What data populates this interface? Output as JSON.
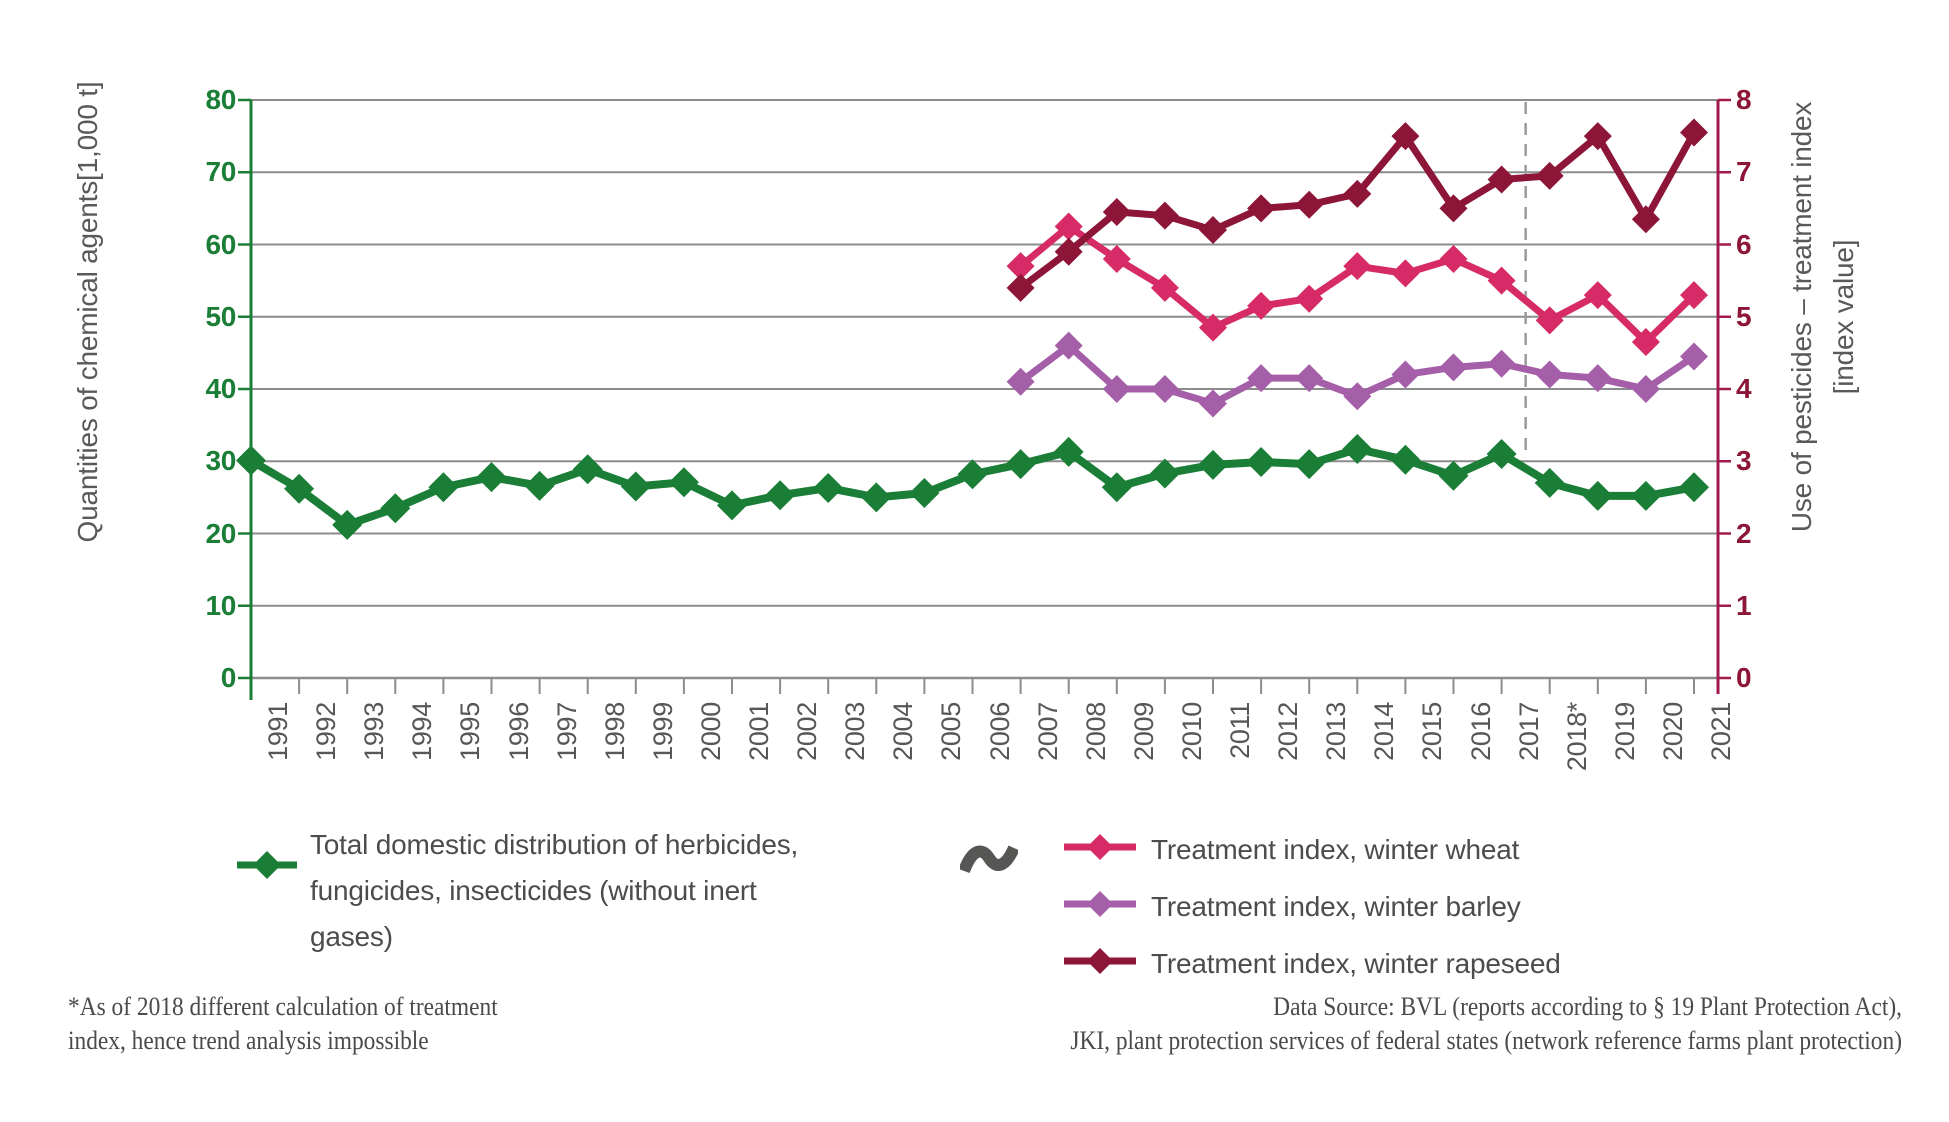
{
  "chart_data": {
    "type": "line",
    "x": [
      1991,
      1992,
      1993,
      1994,
      1995,
      1996,
      1997,
      1998,
      1999,
      2000,
      2001,
      2002,
      2003,
      2004,
      2005,
      2006,
      2007,
      2008,
      2009,
      2010,
      2011,
      2012,
      2013,
      2014,
      2015,
      2016,
      2017,
      2018,
      2019,
      2020,
      2021
    ],
    "x_labels": [
      "1991",
      "1992",
      "1993",
      "1994",
      "1995",
      "1996",
      "1997",
      "1998",
      "1999",
      "2000",
      "2001",
      "2002",
      "2003",
      "2004",
      "2005",
      "2006",
      "2007",
      "2008",
      "2009",
      "2010",
      "2011",
      "2012",
      "2013",
      "2014",
      "2015",
      "2016",
      "2017",
      "2018*",
      "2019",
      "2020",
      "2021"
    ],
    "left_axis": {
      "title": "Quantities of chemical agents[1,000 t]",
      "range": [
        0,
        80
      ],
      "ticks": [
        0,
        10,
        20,
        30,
        40,
        50,
        60,
        70,
        80
      ],
      "color": "#1b7e37"
    },
    "right_axis": {
      "title": "Use of pesticides – treatment index\n[index value]",
      "range": [
        0,
        8
      ],
      "ticks": [
        0,
        1,
        2,
        3,
        4,
        5,
        6,
        7,
        8
      ],
      "color": "#8c1538",
      "line_color": "#a21a4d"
    },
    "grid": {
      "on": true,
      "color": "#8c8c8c"
    },
    "dashed_divider": {
      "between_years": [
        2017,
        2018
      ],
      "color": "#9a9a9a"
    },
    "series": [
      {
        "name": "Total domestic distribution of herbicides, fungicides, insecticides (without inert gases)",
        "axis": "left",
        "color": "#1b7e37",
        "start_year": 1991,
        "values": [
          30.1,
          26.2,
          21.2,
          23.5,
          26.4,
          27.8,
          26.6,
          28.9,
          26.5,
          27.1,
          23.9,
          25.3,
          26.3,
          25.0,
          25.6,
          28.2,
          29.6,
          31.3,
          26.4,
          28.3,
          29.5,
          29.9,
          29.6,
          31.7,
          30.2,
          28.0,
          31.0,
          27.0,
          25.2,
          25.2,
          26.4
        ]
      },
      {
        "name": "Treatment index, winter wheat",
        "axis": "right",
        "color": "#d62b66",
        "start_year": 2007,
        "values": [
          5.7,
          6.25,
          5.8,
          5.4,
          4.85,
          5.15,
          5.25,
          5.7,
          5.6,
          5.8,
          5.5,
          4.95,
          5.3,
          4.65,
          5.3
        ]
      },
      {
        "name": "Treatment index, winter barley",
        "axis": "right",
        "color": "#a55fa9",
        "start_year": 2007,
        "values": [
          4.1,
          4.6,
          4.0,
          4.0,
          3.8,
          4.15,
          4.15,
          3.9,
          4.2,
          4.3,
          4.35,
          4.2,
          4.15,
          4.0,
          4.45
        ]
      },
      {
        "name": "Treatment index, winter rapeseed",
        "axis": "right",
        "color": "#8c1538",
        "start_year": 2007,
        "values": [
          5.4,
          5.9,
          6.45,
          6.4,
          6.2,
          6.5,
          6.55,
          6.7,
          7.5,
          6.5,
          6.9,
          6.95,
          7.5,
          6.35,
          7.55
        ]
      }
    ],
    "legend_position": "bottom"
  },
  "legend": {
    "left_label": "Total domestic distribution of herbicides,\nfungicides, insecticides (without inert\ngases)",
    "right_labels": [
      "Treatment index, winter wheat",
      "Treatment index, winter barley",
      "Treatment index, winter rapeseed"
    ],
    "break_symbol": "wave-tilde"
  },
  "footnotes": {
    "asterisk_note": "*As of 2018 different calculation of treatment\nindex, hence trend analysis impossible",
    "source": "Data Source: BVL (reports according to § 19 Plant Protection Act),\nJKI, plant protection services of federal states (network reference farms plant protection)"
  }
}
